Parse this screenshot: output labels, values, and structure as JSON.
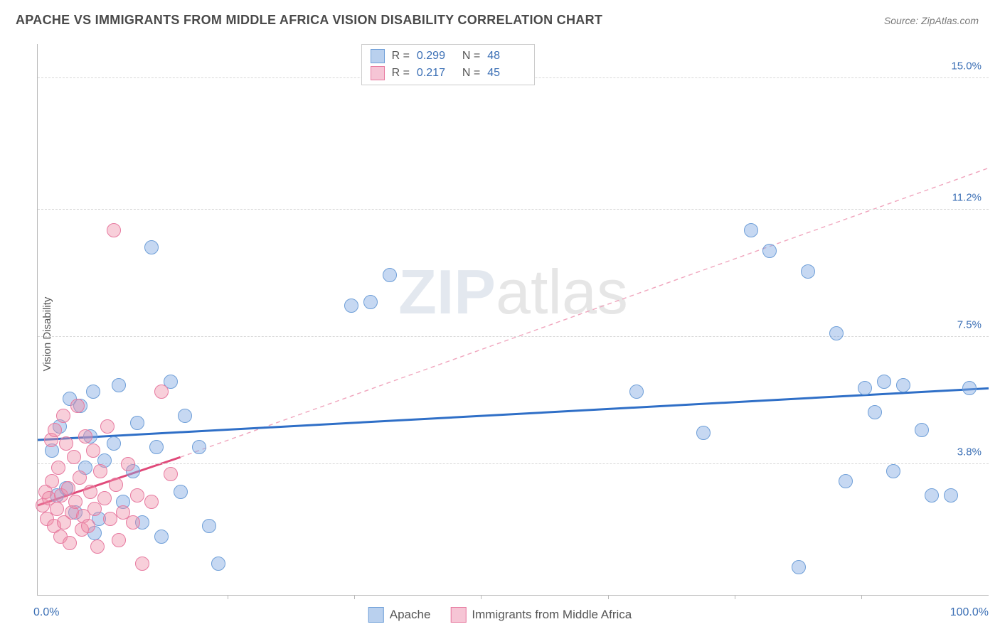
{
  "title": "APACHE VS IMMIGRANTS FROM MIDDLE AFRICA VISION DISABILITY CORRELATION CHART",
  "source": "Source: ZipAtlas.com",
  "ylabel": "Vision Disability",
  "watermark_a": "ZIP",
  "watermark_b": "atlas",
  "axis_label_color": "#3b6fb5",
  "grid_color": "#d8d8d8",
  "border_color": "#b8b8b8",
  "bg": "#ffffff",
  "chart": {
    "type": "scatter",
    "xlim": [
      0,
      100
    ],
    "ylim": [
      0,
      16
    ],
    "yticks": [
      {
        "v": 3.8,
        "label": "3.8%"
      },
      {
        "v": 7.5,
        "label": "7.5%"
      },
      {
        "v": 11.2,
        "label": "11.2%"
      },
      {
        "v": 15.0,
        "label": "15.0%"
      }
    ],
    "xticks_minor": [
      20,
      33.3,
      46.6,
      60,
      73.3,
      86.6
    ],
    "x_left_label": "0.0%",
    "x_right_label": "100.0%",
    "marker_radius": 10,
    "marker_border_width": 1.3
  },
  "series": [
    {
      "name": "Apache",
      "color_fill": "rgba(129,169,226,0.45)",
      "color_stroke": "#6f9fd8",
      "swatch_fill": "#b9d0ee",
      "swatch_border": "#6f9fd8",
      "r": "0.299",
      "n": "48",
      "trend": {
        "x1": 0,
        "y1": 4.5,
        "x2": 100,
        "y2": 6.0,
        "stroke": "#2f6fc7",
        "width": 3,
        "dash": "none"
      },
      "extrap": null,
      "points": [
        [
          1.5,
          4.2
        ],
        [
          2,
          2.9
        ],
        [
          2.3,
          4.9
        ],
        [
          3,
          3.1
        ],
        [
          3.4,
          5.7
        ],
        [
          4,
          2.4
        ],
        [
          4.5,
          5.5
        ],
        [
          5,
          3.7
        ],
        [
          5.5,
          4.6
        ],
        [
          5.8,
          5.9
        ],
        [
          6,
          1.8
        ],
        [
          6.4,
          2.2
        ],
        [
          7,
          3.9
        ],
        [
          8,
          4.4
        ],
        [
          8.5,
          6.1
        ],
        [
          9,
          2.7
        ],
        [
          10,
          3.6
        ],
        [
          10.5,
          5.0
        ],
        [
          11,
          2.1
        ],
        [
          12,
          10.1
        ],
        [
          12.5,
          4.3
        ],
        [
          13,
          1.7
        ],
        [
          14,
          6.2
        ],
        [
          15,
          3.0
        ],
        [
          15.5,
          5.2
        ],
        [
          17,
          4.3
        ],
        [
          18,
          2.0
        ],
        [
          19,
          0.9
        ],
        [
          33,
          8.4
        ],
        [
          35,
          8.5
        ],
        [
          37,
          9.3
        ],
        [
          63,
          5.9
        ],
        [
          70,
          4.7
        ],
        [
          75,
          10.6
        ],
        [
          77,
          10.0
        ],
        [
          80,
          0.8
        ],
        [
          81,
          9.4
        ],
        [
          84,
          7.6
        ],
        [
          85,
          3.3
        ],
        [
          87,
          6.0
        ],
        [
          88,
          5.3
        ],
        [
          89,
          6.2
        ],
        [
          90,
          3.6
        ],
        [
          91,
          6.1
        ],
        [
          93,
          4.8
        ],
        [
          94,
          2.9
        ],
        [
          96,
          2.9
        ],
        [
          98,
          6.0
        ]
      ]
    },
    {
      "name": "Immigrants from Middle Africa",
      "color_fill": "rgba(238,140,168,0.42)",
      "color_stroke": "#e77aa0",
      "swatch_fill": "#f6c5d5",
      "swatch_border": "#e77aa0",
      "r": "0.217",
      "n": "45",
      "trend": {
        "x1": 0,
        "y1": 2.6,
        "x2": 15,
        "y2": 4.0,
        "stroke": "#e04a7a",
        "width": 3,
        "dash": "none"
      },
      "extrap": {
        "x1": 15,
        "y1": 4.0,
        "x2": 100,
        "y2": 12.4,
        "stroke": "#f0a5bd",
        "width": 1.4,
        "dash": "6,5"
      },
      "points": [
        [
          0.5,
          2.6
        ],
        [
          0.8,
          3.0
        ],
        [
          1,
          2.2
        ],
        [
          1.2,
          2.8
        ],
        [
          1.4,
          4.5
        ],
        [
          1.5,
          3.3
        ],
        [
          1.7,
          2.0
        ],
        [
          1.8,
          4.8
        ],
        [
          2,
          2.5
        ],
        [
          2.2,
          3.7
        ],
        [
          2.4,
          1.7
        ],
        [
          2.5,
          2.9
        ],
        [
          2.7,
          5.2
        ],
        [
          2.8,
          2.1
        ],
        [
          3,
          4.4
        ],
        [
          3.2,
          3.1
        ],
        [
          3.4,
          1.5
        ],
        [
          3.6,
          2.4
        ],
        [
          3.8,
          4.0
        ],
        [
          4,
          2.7
        ],
        [
          4.2,
          5.5
        ],
        [
          4.4,
          3.4
        ],
        [
          4.6,
          1.9
        ],
        [
          4.8,
          2.3
        ],
        [
          5,
          4.6
        ],
        [
          5.3,
          2.0
        ],
        [
          5.5,
          3.0
        ],
        [
          5.8,
          4.2
        ],
        [
          6,
          2.5
        ],
        [
          6.3,
          1.4
        ],
        [
          6.6,
          3.6
        ],
        [
          7,
          2.8
        ],
        [
          7.3,
          4.9
        ],
        [
          7.6,
          2.2
        ],
        [
          8,
          10.6
        ],
        [
          8.2,
          3.2
        ],
        [
          8.5,
          1.6
        ],
        [
          9,
          2.4
        ],
        [
          9.5,
          3.8
        ],
        [
          10,
          2.1
        ],
        [
          10.5,
          2.9
        ],
        [
          11,
          0.9
        ],
        [
          12,
          2.7
        ],
        [
          13,
          5.9
        ],
        [
          14,
          3.5
        ]
      ]
    }
  ],
  "legend_x": [
    {
      "label": "Apache",
      "fill": "#b9d0ee",
      "border": "#6f9fd8"
    },
    {
      "label": "Immigrants from Middle Africa",
      "fill": "#f6c5d5",
      "border": "#e77aa0"
    }
  ]
}
